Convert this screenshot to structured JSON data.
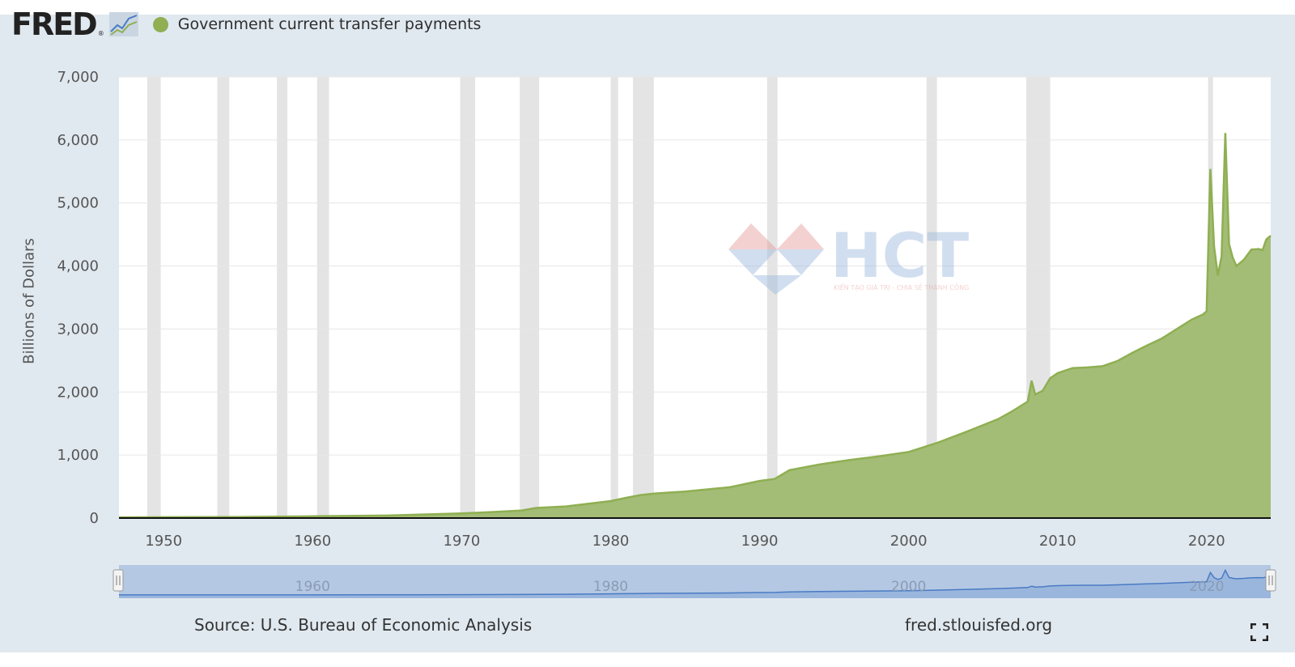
{
  "header": {
    "logo": "FRED",
    "logo_reg": "®",
    "logo_icon": "line-graph-icon",
    "legend_label": "Government current transfer payments"
  },
  "watermark": {
    "text": "HCT",
    "tagline": "KIẾN TẠO GIÁ TRỊ - CHIA SẺ THÀNH CÔNG"
  },
  "footer": {
    "source": "Source: U.S. Bureau of Economic Analysis",
    "url": "fred.stlouisfed.org",
    "fullscreen_icon": "fullscreen-icon"
  },
  "colors": {
    "series": "#8faf52",
    "series_fill": "#a3bd76",
    "recession": "#e4e4e4",
    "navigator": "#b5c8e3",
    "navigator_line": "#4a7bc4"
  },
  "chart_data": {
    "type": "area",
    "title": "",
    "xlabel": "",
    "ylabel": "Billions of Dollars",
    "xlim": [
      1947,
      2024.3
    ],
    "ylim": [
      0,
      7000
    ],
    "yticks": [
      "0",
      "1,000",
      "2,000",
      "3,000",
      "4,000",
      "5,000",
      "6,000",
      "7,000"
    ],
    "ytick_values": [
      0,
      1000,
      2000,
      3000,
      4000,
      5000,
      6000,
      7000
    ],
    "xticks": [
      "1950",
      "1960",
      "1970",
      "1980",
      "1990",
      "2000",
      "2010",
      "2020"
    ],
    "xtick_values": [
      1950,
      1960,
      1970,
      1980,
      1990,
      2000,
      2010,
      2020
    ],
    "grid": true,
    "legend": "top-left",
    "series": [
      {
        "name": "Government current transfer payments",
        "x": [
          1947,
          1950,
          1955,
          1960,
          1965,
          1970,
          1972,
          1974,
          1975,
          1977,
          1980,
          1981,
          1982,
          1983,
          1985,
          1988,
          1990,
          1991,
          1992,
          1994,
          1996,
          1998,
          2000,
          2002,
          2004,
          2006,
          2007,
          2008,
          2008.25,
          2008.5,
          2009,
          2009.5,
          2010,
          2011,
          2012,
          2013,
          2014,
          2015,
          2016,
          2017,
          2018,
          2019,
          2019.75,
          2020,
          2020.25,
          2020.5,
          2020.75,
          2021,
          2021.25,
          2021.5,
          2021.75,
          2022,
          2022.5,
          2023,
          2023.5,
          2023.75,
          2024,
          2024.3
        ],
        "values": [
          11,
          14,
          18,
          28,
          40,
          75,
          95,
          120,
          160,
          185,
          270,
          320,
          365,
          390,
          420,
          490,
          590,
          620,
          760,
          850,
          920,
          980,
          1050,
          1200,
          1380,
          1570,
          1700,
          1850,
          2180,
          1960,
          2020,
          2220,
          2300,
          2380,
          2390,
          2410,
          2490,
          2620,
          2740,
          2850,
          3000,
          3150,
          3230,
          3280,
          5540,
          4310,
          3850,
          4150,
          6110,
          4350,
          4130,
          4000,
          4100,
          4260,
          4270,
          4250,
          4420,
          4480
        ]
      }
    ],
    "recessions": [
      [
        1948.9,
        1949.8
      ],
      [
        1953.6,
        1954.4
      ],
      [
        1957.6,
        1958.3
      ],
      [
        1960.3,
        1961.1
      ],
      [
        1969.9,
        1970.9
      ],
      [
        1973.9,
        1975.2
      ],
      [
        1980.0,
        1980.5
      ],
      [
        1981.5,
        1982.9
      ],
      [
        1990.5,
        1991.2
      ],
      [
        2001.2,
        2001.9
      ],
      [
        2007.9,
        2009.5
      ],
      [
        2020.1,
        2020.3
      ]
    ],
    "navigator": {
      "xlim": [
        1947,
        2024.3
      ],
      "xticks": [
        "1960",
        "1980",
        "2000",
        "2020"
      ],
      "xtick_values": [
        1960,
        1980,
        2000,
        2020
      ]
    }
  }
}
